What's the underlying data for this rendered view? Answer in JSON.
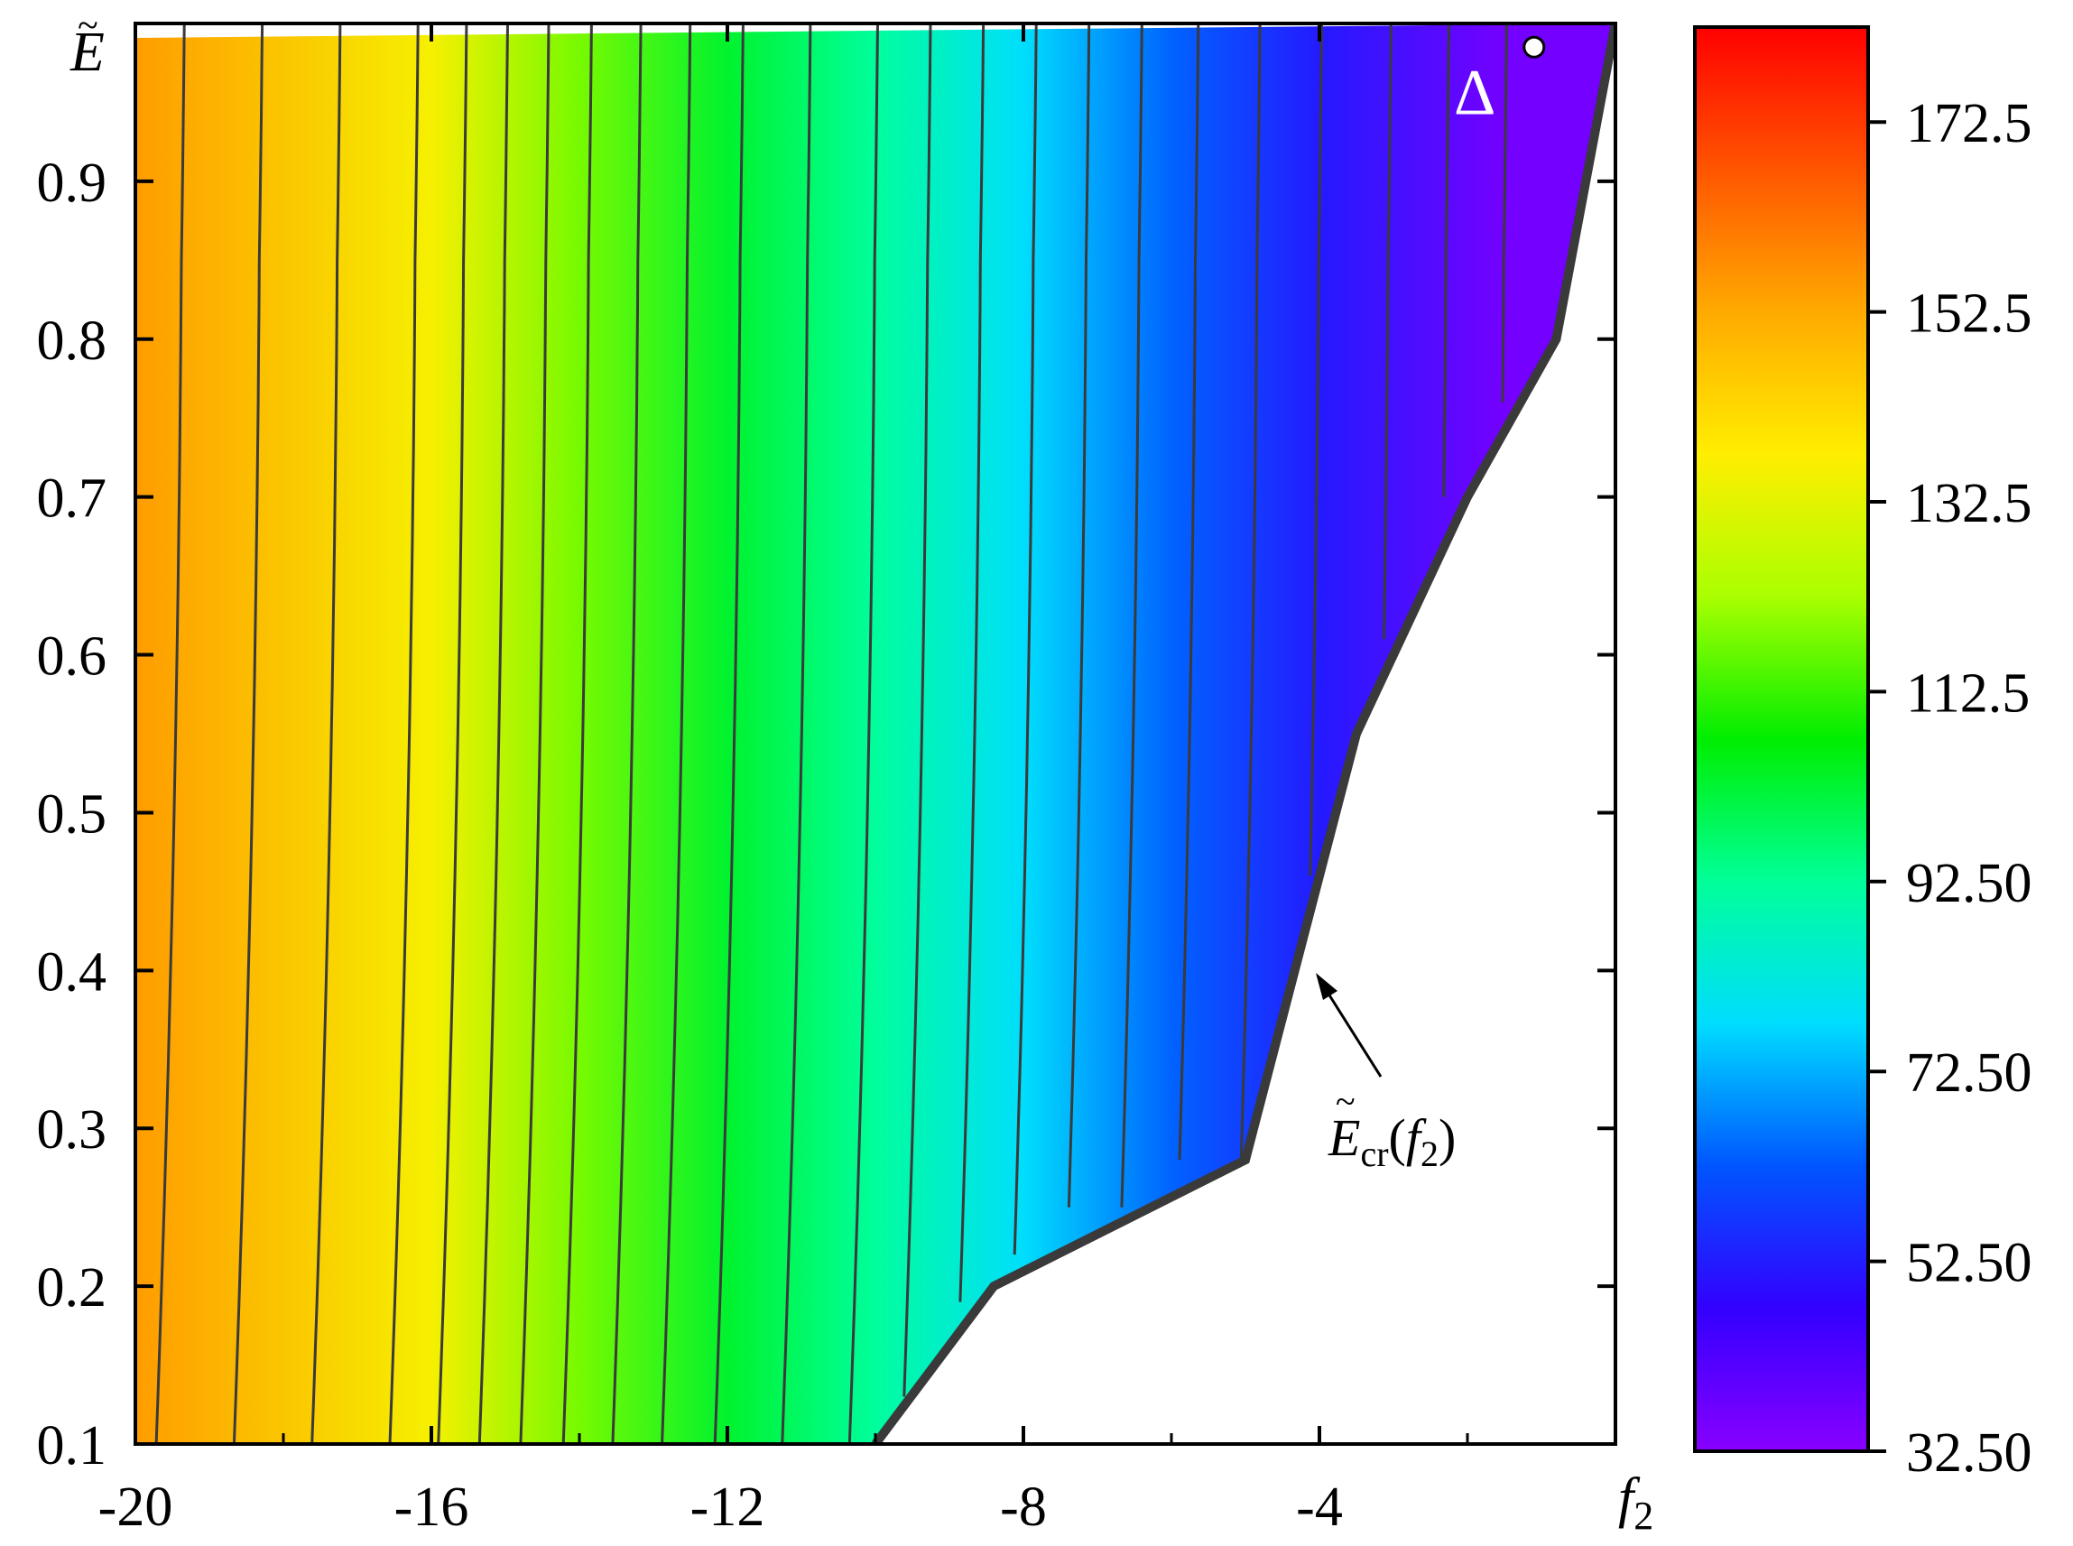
{
  "chart_data": {
    "type": "heatmap",
    "subtype": "filled-contour",
    "title": "",
    "x": {
      "label": "f",
      "label_subscript": "2",
      "range": [
        -20,
        0
      ],
      "ticks": [
        -20,
        -16,
        -12,
        -8,
        -4
      ],
      "tick_labels": [
        "-20",
        "-16",
        "-12",
        "-8",
        "-4"
      ]
    },
    "y": {
      "label": "E",
      "label_accent": "~",
      "range": [
        0.1,
        1.0
      ],
      "ticks": [
        0.1,
        0.2,
        0.3,
        0.4,
        0.5,
        0.6,
        0.7,
        0.8,
        0.9
      ],
      "tick_labels": [
        "0.1",
        "0.2",
        "0.3",
        "0.4",
        "0.5",
        "0.6",
        "0.7",
        "0.8",
        "0.9"
      ]
    },
    "colorbar": {
      "range": [
        32.5,
        182.5
      ],
      "tick_values": [
        32.5,
        52.5,
        72.5,
        92.5,
        112.5,
        132.5,
        152.5,
        172.5
      ],
      "tick_labels": [
        "32.50",
        "52.50",
        "72.50",
        "92.50",
        "112.5",
        "132.5",
        "152.5",
        "172.5"
      ],
      "colors": [
        "#8800ff",
        "#3300ff",
        "#0055ff",
        "#00ddff",
        "#00ff99",
        "#00ee00",
        "#aaff00",
        "#ffee00",
        "#ffaa00",
        "#ff5500",
        "#ff0000"
      ]
    },
    "field_samples": [
      {
        "f2": -20,
        "value": 155
      },
      {
        "f2": -16,
        "value": 136
      },
      {
        "f2": -14,
        "value": 118
      },
      {
        "f2": -12,
        "value": 103
      },
      {
        "f2": -10,
        "value": 92
      },
      {
        "f2": -8,
        "value": 78
      },
      {
        "f2": -6,
        "value": 64
      },
      {
        "f2": -4,
        "value": 52
      },
      {
        "f2": -1.5,
        "value": 36
      }
    ],
    "boundary": {
      "name": "E_cr(f2)",
      "points": [
        [
          -10,
          0.1
        ],
        [
          -8.4,
          0.2
        ],
        [
          -5,
          0.28
        ],
        [
          -3.5,
          0.55
        ],
        [
          -2,
          0.7
        ],
        [
          -0.8,
          0.8
        ],
        [
          0,
          1.0
        ]
      ]
    },
    "contour_levels": [
      36,
      41,
      46,
      52,
      57,
      62,
      67,
      72,
      77,
      82,
      87,
      92,
      97,
      102,
      107,
      112,
      117,
      122,
      127,
      132,
      137,
      142,
      147,
      152,
      157
    ],
    "markers": [
      {
        "symbol": "Δ",
        "f2": -1.9,
        "E": 0.955
      },
      {
        "symbol": "circle",
        "f2": -1.1,
        "E": 0.985
      }
    ],
    "annotation": {
      "text_main": "E",
      "text_sub_cr": "cr",
      "text_open": "(",
      "text_f": "f",
      "text_sub_2": "2",
      "text_close": ")",
      "arrow_target": [
        -4,
        0.4
      ]
    }
  }
}
